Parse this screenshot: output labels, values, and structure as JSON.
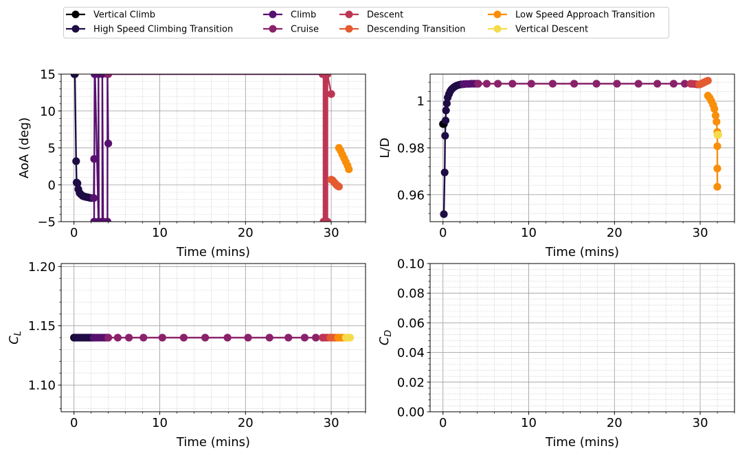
{
  "legend": {
    "location": "top-center",
    "entries": [
      {
        "label": "Vertical Climb",
        "color": "#000004"
      },
      {
        "label": "High Speed Climbing Transition",
        "color": "#1e0c45"
      },
      {
        "label": "Climb",
        "color": "#57106e"
      },
      {
        "label": "Cruise",
        "color": "#8a226a"
      },
      {
        "label": "Descent",
        "color": "#bc3754"
      },
      {
        "label": "Descending Transition",
        "color": "#e45a31"
      },
      {
        "label": "Low Speed Approach Transition",
        "color": "#f98e09"
      },
      {
        "label": "Vertical Descent",
        "color": "#f5db4b"
      }
    ]
  },
  "chart_data": [
    {
      "type": "line",
      "id": "aoa",
      "xlabel": "Time (mins)",
      "ylabel": "AoA (deg)",
      "xlim": [
        -1.5,
        34
      ],
      "ylim": [
        -5,
        15
      ],
      "xticks": [
        0,
        10,
        20,
        30
      ],
      "yticks": [
        -5,
        0,
        5,
        10,
        15
      ],
      "grid": true,
      "series": [
        {
          "name": "Vertical Climb",
          "x": [
            0.05,
            0.1
          ],
          "y": [
            15,
            15
          ]
        },
        {
          "name": "High Speed Climbing Transition",
          "x": [
            0.1,
            0.25,
            0.3,
            0.4,
            0.5,
            0.65,
            0.8,
            1.0,
            1.2,
            1.4,
            1.6,
            1.8,
            2.0,
            2.3
          ],
          "y": [
            15,
            3.2,
            0.3,
            0.2,
            -0.6,
            -1.1,
            -1.3,
            -1.5,
            -1.6,
            -1.65,
            -1.7,
            -1.75,
            -1.8,
            -1.8
          ]
        },
        {
          "name": "Climb",
          "x": [
            2.3,
            2.35,
            2.35,
            2.4,
            2.45,
            2.85,
            2.85,
            2.9,
            3.3,
            3.3,
            3.4,
            3.9,
            3.9,
            4.0
          ],
          "y": [
            -1.8,
            3.5,
            -5,
            15,
            15,
            -5,
            15,
            -5,
            -5,
            15,
            -5,
            -5,
            15,
            5.6
          ]
        },
        {
          "name": "Cruise",
          "x": [
            4.0,
            29.0
          ],
          "y": [
            15,
            15
          ]
        },
        {
          "name": "Descent",
          "x": [
            29.1,
            29.1,
            29.25,
            29.25,
            29.4,
            29.4,
            29.55,
            29.55,
            30.0
          ],
          "y": [
            15,
            -5,
            -5,
            15,
            15,
            -5,
            -5,
            15,
            12.3
          ]
        },
        {
          "name": "Descending Transition",
          "x": [
            30.0,
            30.15,
            30.3,
            30.45,
            30.6,
            30.75,
            30.9
          ],
          "y": [
            0.7,
            0.6,
            0.4,
            0.2,
            0.0,
            -0.15,
            -0.25
          ]
        },
        {
          "name": "Low Speed Approach Transition",
          "x": [
            30.9,
            31.1,
            31.3,
            31.5,
            31.7,
            31.9,
            32.05
          ],
          "y": [
            5.0,
            4.6,
            4.1,
            3.6,
            3.1,
            2.6,
            2.1
          ]
        },
        {
          "name": "Vertical Descent",
          "x": [],
          "y": []
        }
      ]
    },
    {
      "type": "line",
      "id": "ld",
      "xlabel": "Time (mins)",
      "ylabel": "L/D",
      "xlim": [
        -1.5,
        34
      ],
      "ylim": [
        0.9485,
        1.0115
      ],
      "xticks": [
        0,
        10,
        20,
        30
      ],
      "yticks": [
        0.96,
        0.98,
        1.0
      ],
      "grid": true,
      "series": [
        {
          "name": "Vertical Climb",
          "x": [
            0.0,
            0.05,
            0.1
          ],
          "y": [
            0.9902,
            0.9902,
            0.9902
          ]
        },
        {
          "name": "High Speed Climbing Transition",
          "x": [
            0.1,
            0.2,
            0.25,
            0.3,
            0.35,
            0.45,
            0.55,
            0.7,
            0.85,
            1.0,
            1.2,
            1.4,
            1.6,
            1.85,
            2.1,
            2.4
          ],
          "y": [
            0.9517,
            0.9695,
            0.9852,
            0.9917,
            0.996,
            0.999,
            1.0015,
            1.003,
            1.0042,
            1.005,
            1.0057,
            1.0062,
            1.0066,
            1.0069,
            1.0071,
            1.0072
          ]
        },
        {
          "name": "Climb",
          "x": [
            2.4,
            2.7,
            3.0,
            3.3,
            3.6,
            3.9,
            4.1
          ],
          "y": [
            1.0072,
            1.0073,
            1.0073,
            1.0074,
            1.0074,
            1.0074,
            1.0074
          ]
        },
        {
          "name": "Cruise",
          "x": [
            4.1,
            5.1,
            6.4,
            8.1,
            10.3,
            12.8,
            15.3,
            17.9,
            20.3,
            22.8,
            25.0,
            26.9,
            28.2,
            28.9
          ],
          "y": [
            1.0074,
            1.0074,
            1.0074,
            1.0074,
            1.0074,
            1.0074,
            1.0074,
            1.0074,
            1.0074,
            1.0074,
            1.0074,
            1.0074,
            1.0074,
            1.0074
          ]
        },
        {
          "name": "Descent",
          "x": [
            28.9,
            29.1,
            29.3,
            29.5,
            29.7,
            29.9
          ],
          "y": [
            1.0074,
            1.0073,
            1.0073,
            1.0072,
            1.0071,
            1.0071
          ]
        },
        {
          "name": "Descending Transition",
          "x": [
            29.9,
            30.1,
            30.3,
            30.5,
            30.7,
            30.9
          ],
          "y": [
            1.0071,
            1.0073,
            1.0077,
            1.008,
            1.0084,
            1.0087
          ]
        },
        {
          "name": "Low Speed Approach Transition",
          "x": [
            30.9,
            31.1,
            31.3,
            31.5,
            31.65,
            31.8,
            31.9,
            32.0,
            32.0,
            32.0,
            32.0
          ],
          "y": [
            1.0023,
            1.0014,
            1.0,
            0.9984,
            0.9966,
            0.9938,
            0.9912,
            0.9868,
            0.9807,
            0.9712,
            0.9634
          ]
        },
        {
          "name": "Vertical Descent",
          "x": [
            32.0,
            32.1
          ],
          "y": [
            0.9856,
            0.9856
          ]
        }
      ]
    },
    {
      "type": "line",
      "id": "cl",
      "xlabel": "Time (mins)",
      "ylabel": "C",
      "ylabel_subscript": "L",
      "xlim": [
        -1.5,
        34
      ],
      "ylim": [
        1.0775,
        1.2025
      ],
      "xticks": [
        0,
        10,
        20,
        30
      ],
      "yticks": [
        1.1,
        1.15,
        1.2
      ],
      "ytick_labels": [
        "1.10",
        "1.15",
        "1.20"
      ],
      "grid": true,
      "series": [
        {
          "name": "Vertical Climb",
          "x": [
            0.0,
            0.1
          ],
          "y": [
            1.14,
            1.14
          ]
        },
        {
          "name": "High Speed Climbing Transition",
          "x": [
            0.1,
            0.3,
            0.5,
            0.7,
            0.9,
            1.1,
            1.3,
            1.5,
            1.7,
            1.9,
            2.1,
            2.3
          ],
          "y": [
            1.14,
            1.14,
            1.14,
            1.14,
            1.14,
            1.14,
            1.14,
            1.14,
            1.14,
            1.14,
            1.14,
            1.14
          ]
        },
        {
          "name": "Climb",
          "x": [
            2.3,
            2.6,
            2.9,
            3.2,
            3.5,
            3.8,
            4.0
          ],
          "y": [
            1.14,
            1.14,
            1.14,
            1.14,
            1.14,
            1.14,
            1.14
          ]
        },
        {
          "name": "Cruise",
          "x": [
            4.0,
            5.1,
            6.4,
            8.1,
            10.3,
            12.8,
            15.3,
            17.9,
            20.3,
            22.8,
            25.0,
            26.9,
            28.2,
            29.0
          ],
          "y": [
            1.14,
            1.14,
            1.14,
            1.14,
            1.14,
            1.14,
            1.14,
            1.14,
            1.14,
            1.14,
            1.14,
            1.14,
            1.14,
            1.14
          ]
        },
        {
          "name": "Descent",
          "x": [
            29.0,
            29.3,
            29.6,
            29.9
          ],
          "y": [
            1.14,
            1.14,
            1.14,
            1.14
          ]
        },
        {
          "name": "Descending Transition",
          "x": [
            29.9,
            30.2,
            30.5,
            30.8
          ],
          "y": [
            1.14,
            1.14,
            1.14,
            1.14
          ]
        },
        {
          "name": "Low Speed Approach Transition",
          "x": [
            30.8,
            31.1,
            31.4,
            31.7
          ],
          "y": [
            1.14,
            1.14,
            1.14,
            1.14
          ]
        },
        {
          "name": "Vertical Descent",
          "x": [
            31.7,
            32.0,
            32.2
          ],
          "y": [
            1.14,
            1.14,
            1.14
          ]
        }
      ]
    },
    {
      "type": "line",
      "id": "cd",
      "xlabel": "Time (mins)",
      "ylabel": "C",
      "ylabel_subscript": "D",
      "xlim": [
        -1.5,
        34
      ],
      "ylim": [
        0.0,
        0.1
      ],
      "xticks": [
        0,
        10,
        20,
        30
      ],
      "yticks": [
        0.0,
        0.02,
        0.04,
        0.06,
        0.08,
        0.1
      ],
      "ytick_labels": [
        "0.00",
        "0.02",
        "0.04",
        "0.06",
        "0.08",
        "0.10"
      ],
      "grid": true,
      "series": []
    }
  ]
}
